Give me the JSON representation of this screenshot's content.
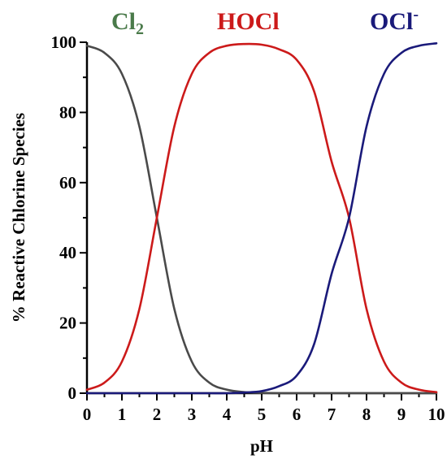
{
  "chart_data": {
    "type": "line",
    "title": "",
    "xlabel": "pH",
    "ylabel": "% Reactive Chlorine Species",
    "xlim": [
      0,
      10
    ],
    "ylim": [
      0,
      100
    ],
    "x_ticks": [
      "0",
      "1",
      "2",
      "3",
      "4",
      "5",
      "6",
      "7",
      "8",
      "9",
      "10"
    ],
    "y_ticks": [
      "0",
      "20",
      "40",
      "60",
      "80",
      "100"
    ],
    "grid": false,
    "legend": "top, labels above plot",
    "series": [
      {
        "name": "Cl2",
        "label_main": "Cl",
        "label_sub": "2",
        "color": "#4a4a4a",
        "x": [
          0,
          0.5,
          1,
          1.5,
          2,
          2.5,
          3,
          3.5,
          4,
          4.5,
          5,
          5.5,
          6,
          6.5,
          7,
          7.5,
          8,
          8.5,
          9,
          9.5,
          10
        ],
        "y": [
          99,
          97,
          91,
          76,
          50,
          24,
          9,
          3,
          1,
          0.3,
          0.1,
          0,
          0,
          0,
          0,
          0,
          0,
          0,
          0,
          0,
          0
        ]
      },
      {
        "name": "HOCl",
        "color": "#cc1a1a",
        "x": [
          0,
          0.5,
          1,
          1.5,
          2,
          2.5,
          3,
          3.5,
          4,
          4.5,
          5,
          5.5,
          6,
          6.5,
          7,
          7.5,
          8,
          8.5,
          9,
          9.5,
          10
        ],
        "y": [
          1,
          3,
          9,
          24,
          50,
          76,
          91,
          97,
          99,
          99.5,
          99.3,
          98,
          95,
          86,
          66,
          50,
          24,
          9,
          3,
          1,
          0.3
        ]
      },
      {
        "name": "OCl-",
        "label_main": "OCl",
        "label_sup": "-",
        "color": "#1a1a7a",
        "x": [
          0,
          0.5,
          1,
          1.5,
          2,
          2.5,
          3,
          3.5,
          4,
          4.5,
          5,
          5.5,
          6,
          6.5,
          7,
          7.5,
          8,
          8.5,
          9,
          9.5,
          10
        ],
        "y": [
          0,
          0,
          0,
          0,
          0,
          0,
          0,
          0,
          0,
          0.2,
          0.6,
          2,
          5,
          14,
          34,
          50,
          76,
          91,
          97,
          99,
          99.7
        ]
      }
    ]
  }
}
